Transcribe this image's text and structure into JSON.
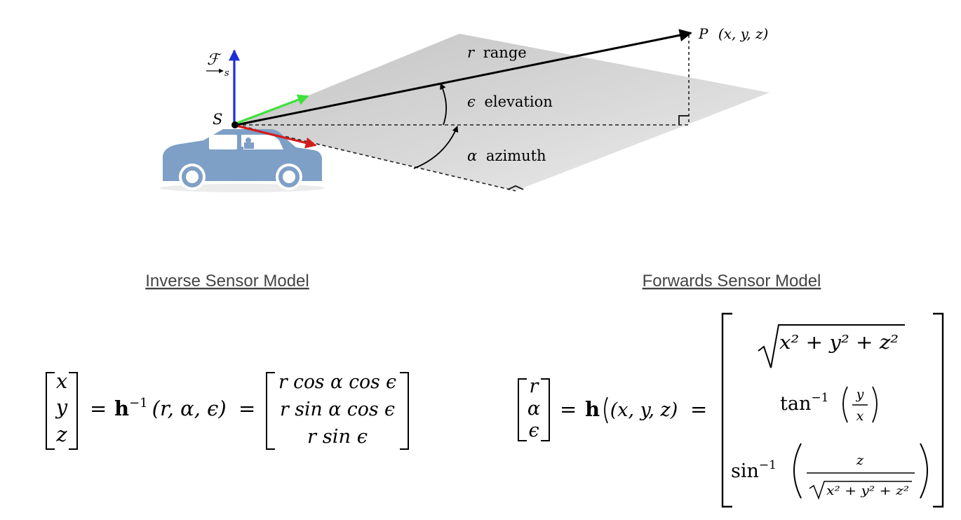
{
  "diagram": {
    "frame_symbol": "ℱ",
    "frame_subscript": "s",
    "sensor_origin": "S",
    "point": {
      "name": "P",
      "coords": "(x, y, z)"
    },
    "range": {
      "symbol": "r",
      "label": "range"
    },
    "elevation": {
      "symbol": "ϵ",
      "label": "elevation"
    },
    "azimuth": {
      "symbol": "α",
      "label": "azimuth"
    },
    "colors": {
      "axis_up": "#1f2ed6",
      "axis_forward": "#3ee13a",
      "axis_side": "#d11d1d",
      "car": "#7e9fc6",
      "plane": "#d2d2d2"
    }
  },
  "inverse_model": {
    "title": "Inverse Sensor Model",
    "lhs": [
      "x",
      "y",
      "z"
    ],
    "function": "h",
    "exponent": "−1",
    "args": "(r, α, ϵ)",
    "rhs": [
      "r cos α cos ϵ",
      "r sin α cos ϵ",
      "r sin ϵ"
    ]
  },
  "forward_model": {
    "title": "Forwards Sensor Model",
    "lhs": [
      "r",
      "α",
      "ϵ"
    ],
    "function": "h",
    "args": "(x, y, z)",
    "row1_radicand": "x² + y² + z²",
    "row2_fn": "tan",
    "row2_exp": "−1",
    "row2_num": "y",
    "row2_den": "x",
    "row3_fn": "sin",
    "row3_exp": "−1",
    "row3_num": "z",
    "row3_den_radicand": "x² + y² + z²"
  }
}
